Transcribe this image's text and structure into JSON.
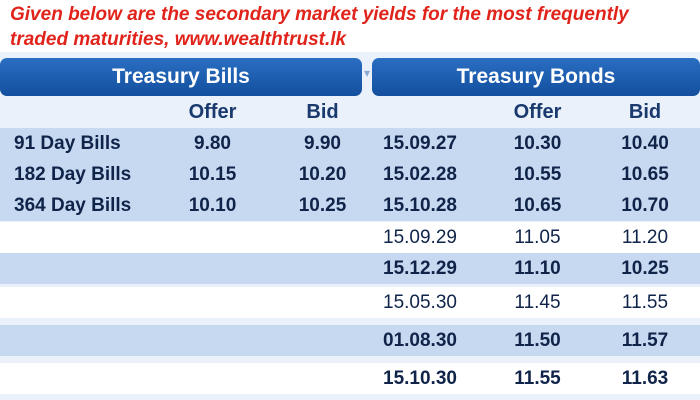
{
  "intro": {
    "line1": "Given below are the secondary market yields for the most frequently",
    "line2": "traded maturities, www.wealthtrust.lk"
  },
  "headers": {
    "bills": "Treasury Bills",
    "bonds": "Treasury Bonds"
  },
  "subheaders": {
    "bills_offer": "Offer",
    "bills_bid": "Bid",
    "bonds_offer": "Offer",
    "bonds_bid": "Bid"
  },
  "rows": [
    {
      "bill": "91 Day Bills",
      "bill_offer": "9.80",
      "bill_bid": "9.90",
      "maturity": "15.09.27",
      "bond_offer": "10.30",
      "bond_bid": "10.40",
      "bold_bond": true
    },
    {
      "bill": "182 Day Bills",
      "bill_offer": "10.15",
      "bill_bid": "10.20",
      "maturity": "15.02.28",
      "bond_offer": "10.55",
      "bond_bid": "10.65",
      "bold_bond": true
    },
    {
      "bill": "364 Day Bills",
      "bill_offer": "10.10",
      "bill_bid": "10.25",
      "maturity": "15.10.28",
      "bond_offer": "10.65",
      "bond_bid": "10.70",
      "bold_bond": true
    },
    {
      "bill": "",
      "bill_offer": "",
      "bill_bid": "",
      "maturity": "15.09.29",
      "bond_offer": "11.05",
      "bond_bid": "11.20",
      "bold_bond": false
    },
    {
      "bill": "",
      "bill_offer": "",
      "bill_bid": "",
      "maturity": "15.12.29",
      "bond_offer": "11.10",
      "bond_bid": "10.25",
      "bold_bond": true
    },
    {
      "bill": "",
      "bill_offer": "",
      "bill_bid": "",
      "maturity": "15.05.30",
      "bond_offer": "11.45",
      "bond_bid": "11.55",
      "bold_bond": false
    },
    {
      "bill": "",
      "bill_offer": "",
      "bill_bid": "",
      "maturity": "01.08.30",
      "bond_offer": "11.50",
      "bond_bid": "11.57",
      "bold_bond": true
    },
    {
      "bill": "",
      "bill_offer": "",
      "bill_bid": "",
      "maturity": "15.10.30",
      "bond_offer": "11.55",
      "bond_bid": "11.63",
      "bold_bond": true
    }
  ]
}
